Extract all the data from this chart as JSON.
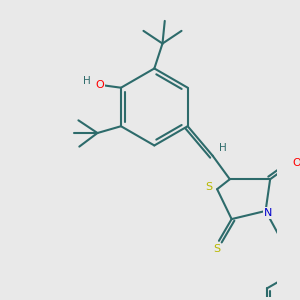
{
  "bg_color": "#e9e9e9",
  "bond_color": "#2d6b6b",
  "bond_width": 1.5,
  "atom_colors": {
    "O": "#ff0000",
    "S": "#b8b800",
    "N": "#0000cc",
    "H": "#2d6b6b",
    "C": "#2d6b6b"
  },
  "figsize": [
    3.0,
    3.0
  ],
  "dpi": 100
}
